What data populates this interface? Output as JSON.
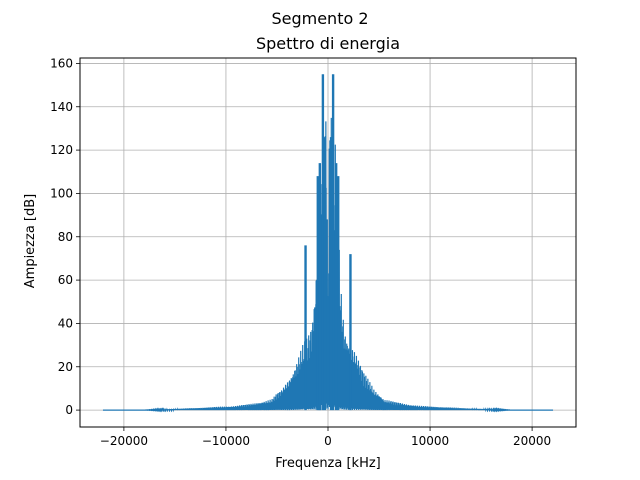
{
  "chart_data": {
    "type": "line",
    "suptitle": "Segmento 2",
    "title": "Spettro di energia",
    "xlabel": "Frequenza [kHz]",
    "ylabel": "Ampiezza [dB]",
    "xlim": [
      -24300,
      24300
    ],
    "ylim": [
      -7.8,
      162.5
    ],
    "xticks": [
      -20000,
      -10000,
      0,
      10000,
      20000
    ],
    "xtick_labels": [
      "−20000",
      "−10000",
      "0",
      "10000",
      "20000"
    ],
    "yticks": [
      0,
      20,
      40,
      60,
      80,
      100,
      120,
      140,
      160
    ],
    "ytick_labels": [
      "0",
      "20",
      "40",
      "60",
      "80",
      "100",
      "120",
      "140",
      "160"
    ],
    "grid": true,
    "line_color": "#1f77b4",
    "envelope": {
      "x": [
        -22050,
        -18000,
        -15500,
        -13000,
        -11000,
        -9000,
        -7500,
        -6500,
        -5500,
        -5000,
        -4500,
        -4000,
        -3500,
        -3000,
        -2500,
        -2000,
        -1600,
        -1400,
        -1200,
        -1000,
        -850,
        -700,
        -550,
        -400,
        -250,
        -100,
        0,
        100,
        250,
        400,
        550,
        700,
        850,
        1000,
        1200,
        1400,
        1600,
        2000,
        2500,
        3000,
        3500,
        4000,
        4500,
        5000,
        5500,
        6500,
        7500,
        9000,
        11000,
        13000,
        15500,
        18000,
        22050
      ],
      "y": [
        0,
        0,
        0.5,
        1,
        1.5,
        2,
        3,
        4,
        5,
        8,
        10,
        14,
        18,
        24,
        30,
        34,
        40,
        50,
        62,
        90,
        105,
        125,
        114,
        126,
        155,
        126,
        40,
        126,
        155,
        126,
        114,
        125,
        105,
        90,
        62,
        50,
        40,
        34,
        30,
        24,
        18,
        14,
        10,
        8,
        5,
        4,
        3,
        2,
        1.5,
        1,
        0.5,
        0,
        0
      ]
    },
    "peaks": [
      {
        "x": -2200,
        "y": 76
      },
      {
        "x": 2200,
        "y": 72
      },
      {
        "x": -500,
        "y": 155
      },
      {
        "x": 500,
        "y": 155
      },
      {
        "x": -300,
        "y": 126
      },
      {
        "x": 300,
        "y": 126
      },
      {
        "x": -800,
        "y": 114
      },
      {
        "x": 800,
        "y": 114
      },
      {
        "x": -1000,
        "y": 108
      },
      {
        "x": 1000,
        "y": 108
      }
    ]
  }
}
